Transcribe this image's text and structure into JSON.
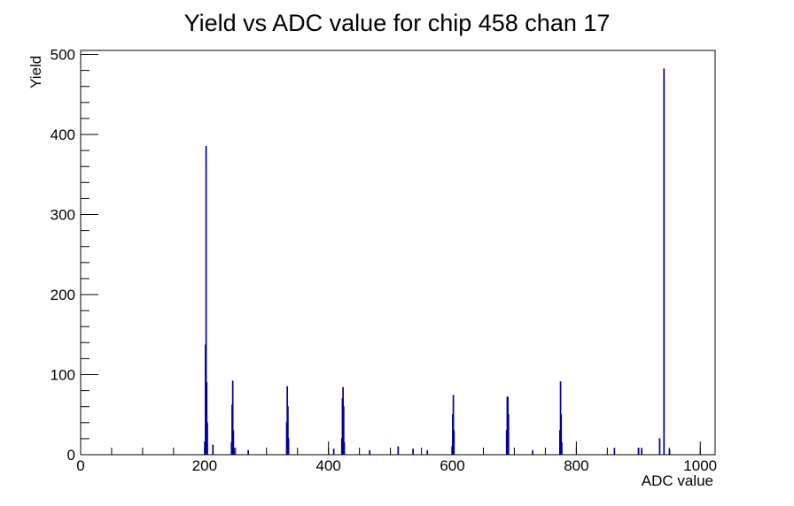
{
  "chart_data": {
    "type": "histogram",
    "title": "Yield vs ADC value for chip 458 chan 17",
    "x_label": "ADC value",
    "y_label": "Yield",
    "color": "#000099",
    "bin_width": 1,
    "x": [
      200,
      201,
      202,
      203,
      204,
      213,
      243,
      244,
      245,
      246,
      247,
      270,
      332,
      333,
      334,
      335,
      408,
      421,
      422,
      423,
      424,
      425,
      466,
      512,
      536,
      559,
      599,
      600,
      601,
      602,
      687,
      688,
      689,
      690,
      729,
      773,
      774,
      775,
      776,
      861,
      900,
      905,
      934,
      941,
      950
    ],
    "values": [
      15,
      137,
      385,
      90,
      40,
      12,
      15,
      62,
      92,
      30,
      8,
      5,
      40,
      85,
      60,
      20,
      7,
      20,
      70,
      84,
      60,
      15,
      5,
      10,
      7,
      5,
      10,
      50,
      74,
      30,
      30,
      72,
      72,
      50,
      5,
      30,
      91,
      50,
      15,
      8,
      8,
      8,
      20,
      482,
      6
    ],
    "xlim": [
      0,
      1024
    ],
    "ylim": [
      0,
      505
    ],
    "xticks": [
      0,
      200,
      400,
      600,
      800,
      1000
    ],
    "yticks": [
      0,
      100,
      200,
      300,
      400,
      500
    ]
  }
}
